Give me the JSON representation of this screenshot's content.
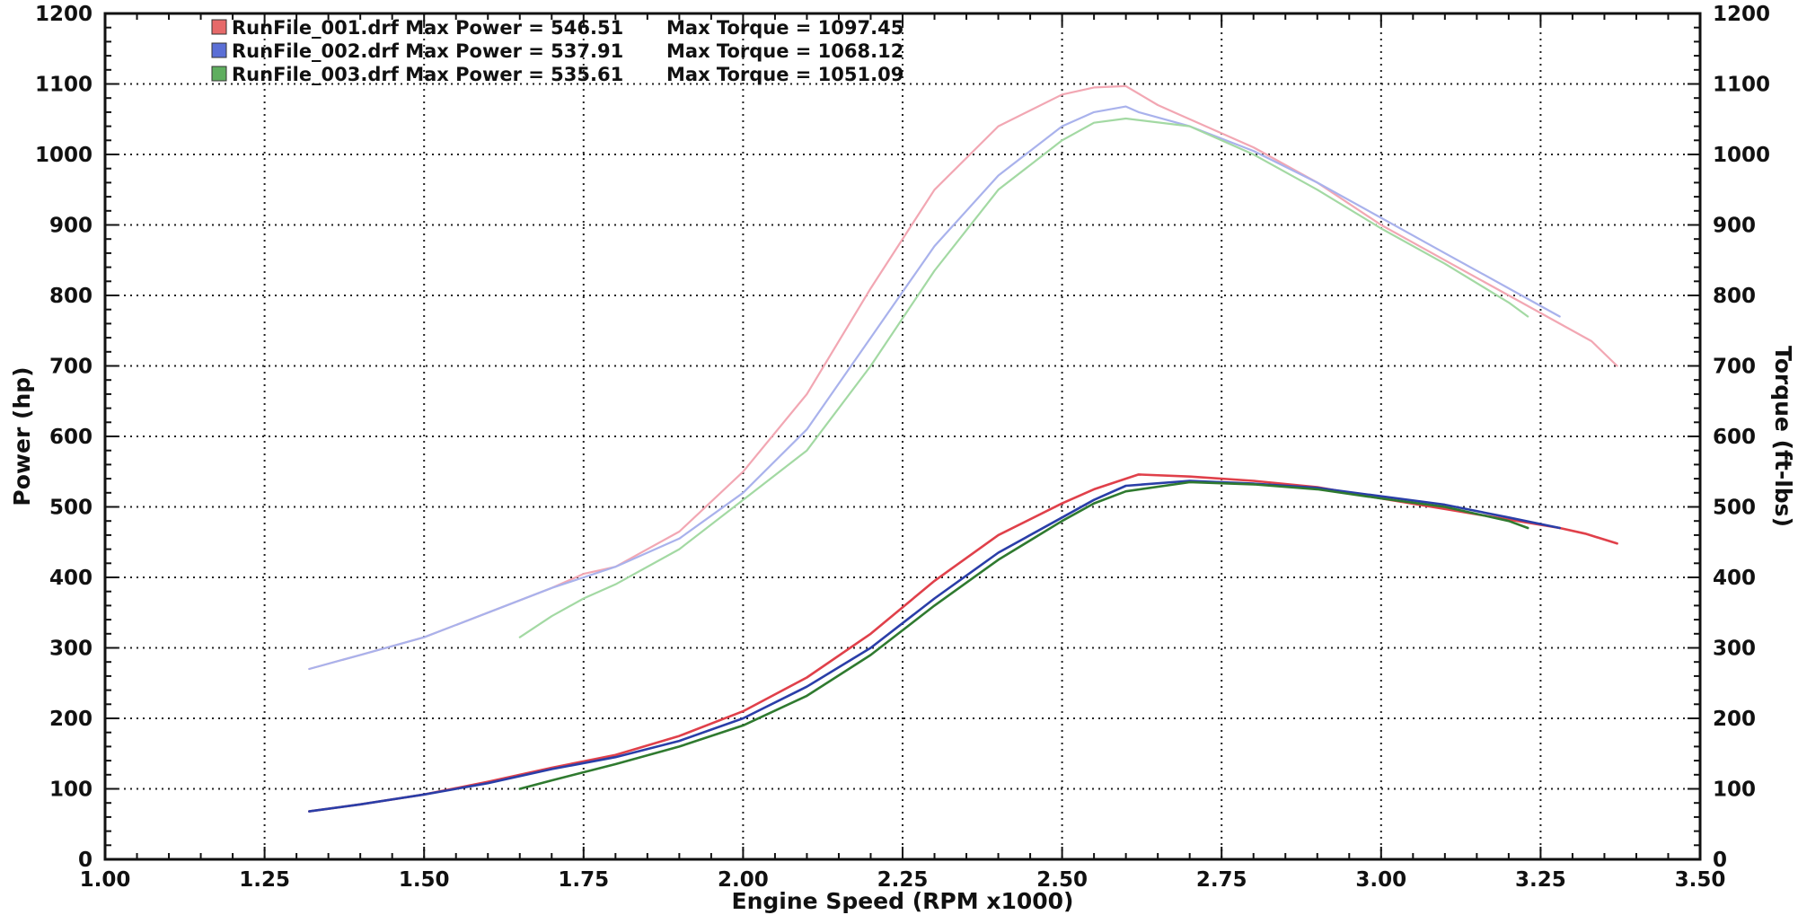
{
  "chart_data": {
    "type": "line",
    "xlabel": "Engine Speed (RPM x1000)",
    "ylabel": "Power (hp)",
    "y2label": "Torque (ft-lbs)",
    "xlim": [
      1.0,
      3.5
    ],
    "ylim": [
      0,
      1200
    ],
    "y2lim": [
      0,
      1200
    ],
    "grid": true,
    "legend_position": "top-left",
    "x_ticks": [
      "1.00",
      "1.25",
      "1.50",
      "1.75",
      "2.00",
      "2.25",
      "2.50",
      "2.75",
      "3.00",
      "3.25",
      "3.50"
    ],
    "y_ticks": [
      "0",
      "100",
      "200",
      "300",
      "400",
      "500",
      "600",
      "700",
      "800",
      "900",
      "1000",
      "1100",
      "1200"
    ],
    "legend": [
      {
        "file": "RunFile_001.drf Max Power = 546.51",
        "torque": "Max Torque = 1097.45",
        "color": "#e66a6a"
      },
      {
        "file": "RunFile_002.drf Max Power = 537.91",
        "torque": "Max Torque = 1068.12",
        "color": "#5b6fd6"
      },
      {
        "file": "RunFile_003.drf Max Power = 535.61",
        "torque": "Max Torque = 1051.09",
        "color": "#5fae5f"
      }
    ],
    "series": [
      {
        "name": "RunFile_001.drf",
        "power": {
          "color": "#e0404a",
          "x": [
            1.32,
            1.4,
            1.5,
            1.6,
            1.7,
            1.8,
            1.9,
            2.0,
            2.1,
            2.2,
            2.3,
            2.4,
            2.5,
            2.55,
            2.62,
            2.7,
            2.8,
            2.9,
            3.0,
            3.1,
            3.2,
            3.28,
            3.32,
            3.37
          ],
          "y": [
            68,
            78,
            92,
            110,
            130,
            148,
            175,
            210,
            258,
            320,
            395,
            460,
            505,
            525,
            546,
            543,
            537,
            528,
            512,
            497,
            482,
            470,
            462,
            448
          ]
        },
        "torque": {
          "color": "#f2a7b3",
          "x": [
            1.32,
            1.4,
            1.5,
            1.6,
            1.7,
            1.75,
            1.8,
            1.9,
            2.0,
            2.1,
            2.2,
            2.3,
            2.4,
            2.5,
            2.55,
            2.6,
            2.65,
            2.7,
            2.8,
            2.9,
            3.0,
            3.1,
            3.2,
            3.28,
            3.33,
            3.37
          ],
          "y": [
            270,
            290,
            315,
            350,
            385,
            405,
            415,
            465,
            550,
            660,
            810,
            950,
            1040,
            1085,
            1095,
            1097,
            1070,
            1050,
            1010,
            960,
            900,
            850,
            800,
            760,
            735,
            700
          ]
        }
      },
      {
        "name": "RunFile_002.drf",
        "power": {
          "color": "#2a3ea8",
          "x": [
            1.32,
            1.4,
            1.5,
            1.6,
            1.7,
            1.8,
            1.9,
            2.0,
            2.1,
            2.2,
            2.3,
            2.4,
            2.5,
            2.55,
            2.6,
            2.7,
            2.8,
            2.9,
            3.0,
            3.1,
            3.2,
            3.28
          ],
          "y": [
            68,
            78,
            92,
            108,
            128,
            145,
            168,
            200,
            245,
            300,
            370,
            435,
            485,
            510,
            530,
            537,
            533,
            527,
            515,
            503,
            485,
            470
          ]
        },
        "torque": {
          "color": "#a9b2ec",
          "x": [
            1.32,
            1.4,
            1.5,
            1.6,
            1.7,
            1.75,
            1.8,
            1.9,
            2.0,
            2.1,
            2.2,
            2.3,
            2.4,
            2.5,
            2.55,
            2.6,
            2.62,
            2.7,
            2.8,
            2.9,
            3.0,
            3.1,
            3.2,
            3.28
          ],
          "y": [
            270,
            290,
            315,
            350,
            385,
            400,
            415,
            455,
            520,
            610,
            740,
            870,
            970,
            1040,
            1060,
            1068,
            1060,
            1040,
            1005,
            960,
            910,
            860,
            810,
            770
          ]
        }
      },
      {
        "name": "RunFile_003.drf",
        "power": {
          "color": "#2f7a2f",
          "x": [
            1.65,
            1.7,
            1.8,
            1.9,
            2.0,
            2.1,
            2.2,
            2.3,
            2.4,
            2.5,
            2.55,
            2.6,
            2.7,
            2.8,
            2.9,
            3.0,
            3.1,
            3.2,
            3.23
          ],
          "y": [
            100,
            112,
            135,
            160,
            190,
            232,
            290,
            360,
            425,
            480,
            505,
            522,
            535,
            532,
            525,
            512,
            500,
            480,
            470
          ]
        },
        "torque": {
          "color": "#a3d9a3",
          "x": [
            1.65,
            1.7,
            1.75,
            1.8,
            1.9,
            2.0,
            2.1,
            2.2,
            2.3,
            2.4,
            2.5,
            2.55,
            2.6,
            2.7,
            2.8,
            2.9,
            3.0,
            3.1,
            3.2,
            3.23
          ],
          "y": [
            315,
            345,
            370,
            390,
            440,
            510,
            580,
            700,
            835,
            950,
            1020,
            1045,
            1051,
            1040,
            1000,
            950,
            895,
            845,
            790,
            770
          ]
        }
      }
    ]
  }
}
